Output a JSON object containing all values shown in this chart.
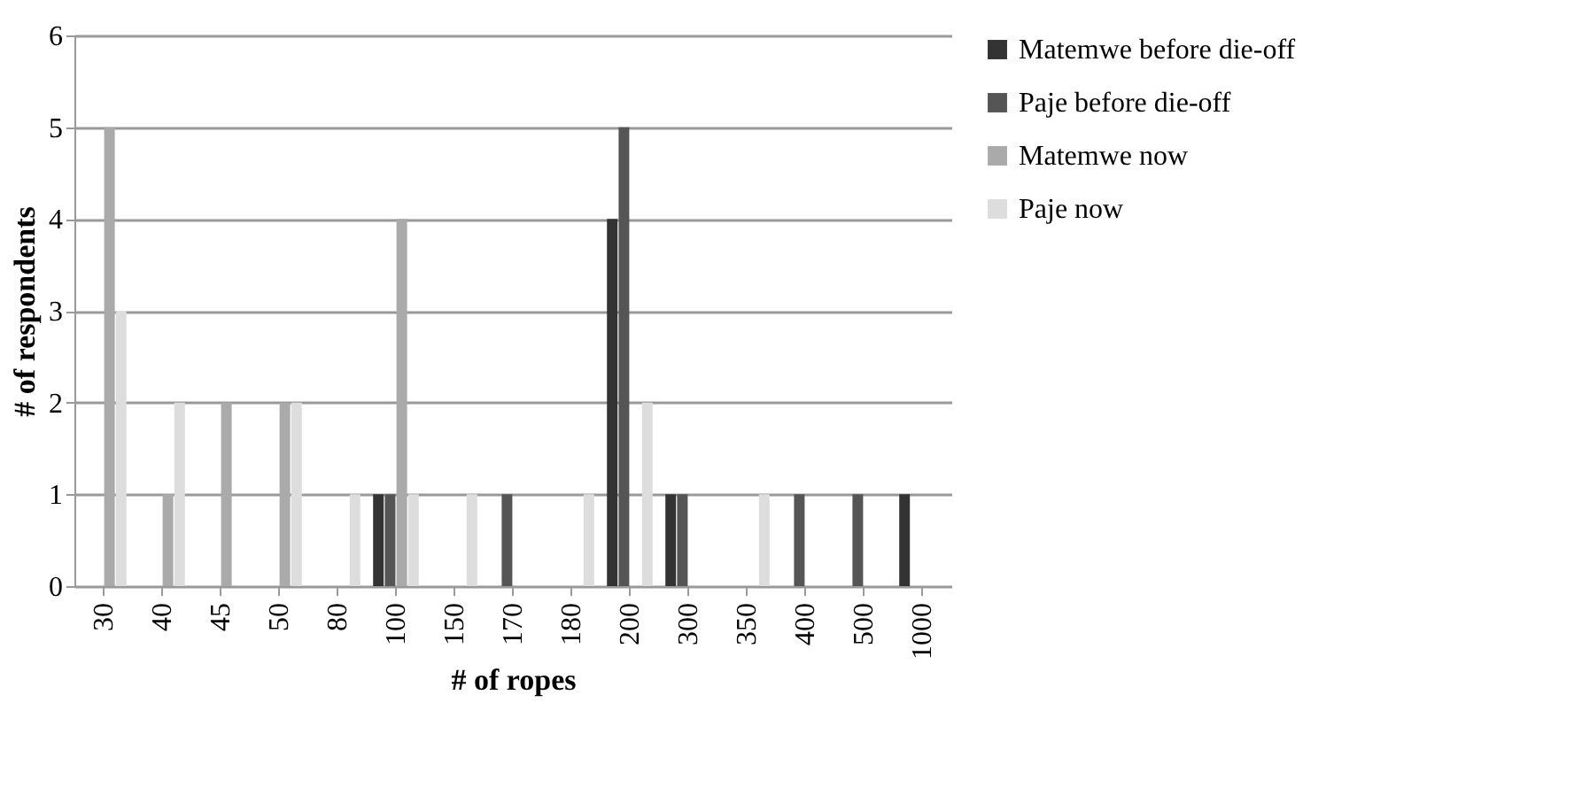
{
  "chart_data": {
    "type": "bar",
    "ylabel": "# of respondents",
    "xlabel": "# of ropes",
    "categories": [
      "30",
      "40",
      "45",
      "50",
      "80",
      "100",
      "150",
      "170",
      "180",
      "200",
      "300",
      "350",
      "400",
      "500",
      "1000"
    ],
    "series": [
      {
        "name": "Matemwe before die-off",
        "color": "#333333",
        "values": [
          0,
          0,
          0,
          0,
          0,
          1,
          0,
          0,
          0,
          4,
          1,
          0,
          0,
          0,
          1
        ]
      },
      {
        "name": "Paje before die-off",
        "color": "#555555",
        "values": [
          0,
          0,
          0,
          0,
          0,
          1,
          0,
          1,
          0,
          5,
          1,
          0,
          1,
          1,
          0
        ]
      },
      {
        "name": "Matemwe now",
        "color": "#aaaaaa",
        "values": [
          5,
          1,
          2,
          2,
          0,
          4,
          0,
          0,
          0,
          0,
          0,
          0,
          0,
          0,
          0
        ]
      },
      {
        "name": "Paje now",
        "color": "#dddddd",
        "values": [
          3,
          2,
          0,
          2,
          1,
          1,
          1,
          0,
          1,
          2,
          0,
          1,
          0,
          0,
          0
        ]
      }
    ],
    "ylim": [
      0,
      6
    ],
    "yticks": [
      0,
      1,
      2,
      3,
      4,
      5,
      6
    ],
    "grid": "y",
    "legend": "right"
  }
}
